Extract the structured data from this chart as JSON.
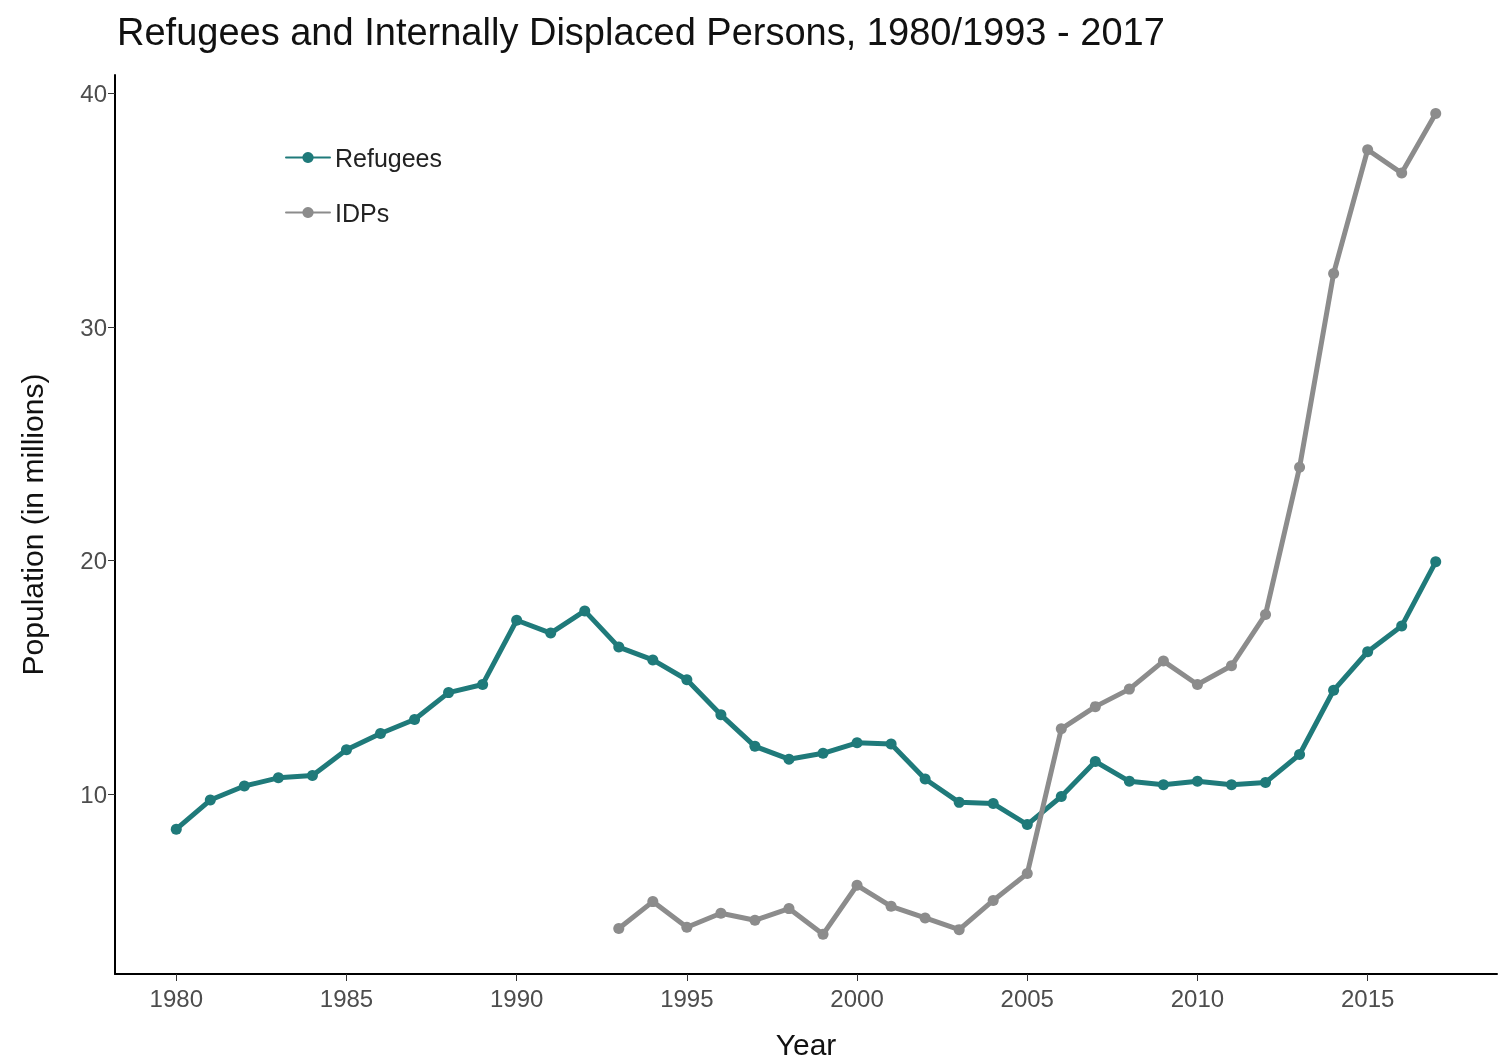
{
  "chart_data": {
    "type": "line",
    "title": "Refugees and Internally Displaced Persons, 1980/1993 - 2017",
    "xlabel": "Year",
    "ylabel": "Population (in millions)",
    "x": [
      1980,
      1981,
      1982,
      1983,
      1984,
      1985,
      1986,
      1987,
      1988,
      1989,
      1990,
      1991,
      1992,
      1993,
      1994,
      1995,
      1996,
      1997,
      1998,
      1999,
      2000,
      2001,
      2002,
      2003,
      2004,
      2005,
      2006,
      2007,
      2008,
      2009,
      2010,
      2011,
      2012,
      2013,
      2014,
      2015,
      2016,
      2017
    ],
    "series": [
      {
        "name": "Refugees",
        "color": "#1f7a7a",
        "values": [
          8.5,
          9.75,
          10.35,
          10.7,
          10.8,
          11.9,
          12.6,
          13.2,
          14.35,
          14.7,
          17.45,
          16.9,
          17.85,
          16.3,
          15.75,
          14.9,
          13.4,
          12.05,
          11.5,
          11.75,
          12.2,
          12.15,
          10.65,
          9.65,
          9.6,
          8.7,
          9.9,
          11.4,
          10.55,
          10.4,
          10.55,
          10.4,
          10.5,
          11.7,
          14.45,
          16.1,
          17.2,
          19.95
        ]
      },
      {
        "name": "IDPs",
        "color": "#8c8c8c",
        "values": [
          null,
          null,
          null,
          null,
          null,
          null,
          null,
          null,
          null,
          null,
          null,
          null,
          null,
          4.25,
          5.4,
          4.3,
          4.9,
          4.6,
          5.1,
          4.0,
          6.1,
          5.2,
          4.7,
          4.2,
          5.45,
          6.6,
          12.8,
          13.75,
          14.5,
          15.7,
          14.7,
          15.5,
          17.7,
          24.0,
          32.3,
          37.6,
          36.6,
          39.15
        ]
      }
    ],
    "xlim": [
      1978.2,
      2018.8
    ],
    "xticks": [
      1980,
      1985,
      1990,
      1995,
      2000,
      2005,
      2010,
      2015
    ],
    "ylim": [
      2.3,
      40.8
    ],
    "yticks": [
      10,
      20,
      30,
      40
    ],
    "grid": false,
    "legend": "top left",
    "marker": "circle",
    "line_style": "solid"
  }
}
